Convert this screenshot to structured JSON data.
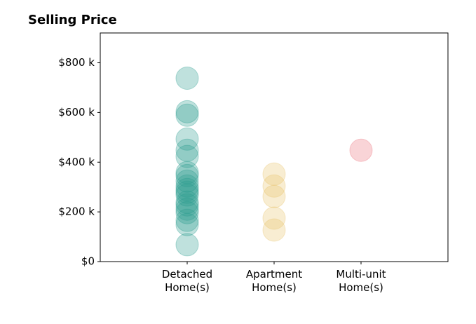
{
  "chart_data": {
    "type": "strip",
    "title": "Selling Price",
    "categories": [
      "Detached\nHome(s)",
      "Apartment\nHome(s)",
      "Multi-unit\nHome(s)"
    ],
    "values": [
      [
        738000,
        603000,
        589000,
        493000,
        448000,
        423000,
        358000,
        346000,
        324000,
        304000,
        290000,
        279000,
        268000,
        239000,
        228000,
        211000,
        197000,
        166000,
        149000,
        68000
      ],
      [
        352000,
        304000,
        262000,
        175000,
        127000
      ],
      [
        448000
      ]
    ],
    "colors": [
      "#2a9d8f",
      "#e9c46a",
      "#ec6f7c"
    ],
    "ylim": [
      0,
      920000
    ],
    "yticks": [
      {
        "value": 0,
        "label": "$0"
      },
      {
        "value": 200000,
        "label": "$200 k"
      },
      {
        "value": 400000,
        "label": "$400 k"
      },
      {
        "value": 600000,
        "label": "$600 k"
      },
      {
        "value": 800000,
        "label": "$800 k"
      }
    ]
  }
}
